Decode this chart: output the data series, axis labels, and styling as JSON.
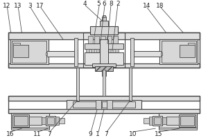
{
  "lc": "#444444",
  "fc_light": "#e8e8e8",
  "fc_mid": "#d4d4d4",
  "fc_dark": "#c0c0c0",
  "fc_white": "#f5f5f5",
  "top_labels": [
    [
      "12",
      8,
      194
    ],
    [
      "13",
      24,
      194
    ],
    [
      "3",
      42,
      194
    ],
    [
      "17",
      57,
      194
    ],
    [
      "4",
      122,
      197
    ],
    [
      "5",
      142,
      197
    ],
    [
      "6",
      150,
      197
    ],
    [
      "8",
      160,
      197
    ],
    [
      "2",
      170,
      197
    ],
    [
      "14",
      212,
      194
    ],
    [
      "18",
      232,
      194
    ]
  ],
  "bot_labels": [
    [
      "16",
      13,
      6
    ],
    [
      "11",
      53,
      6
    ],
    [
      "7",
      70,
      6
    ],
    [
      "9",
      130,
      6
    ],
    [
      "1",
      141,
      6
    ],
    [
      "7",
      153,
      6
    ],
    [
      "10",
      192,
      6
    ],
    [
      "15",
      230,
      6
    ]
  ]
}
